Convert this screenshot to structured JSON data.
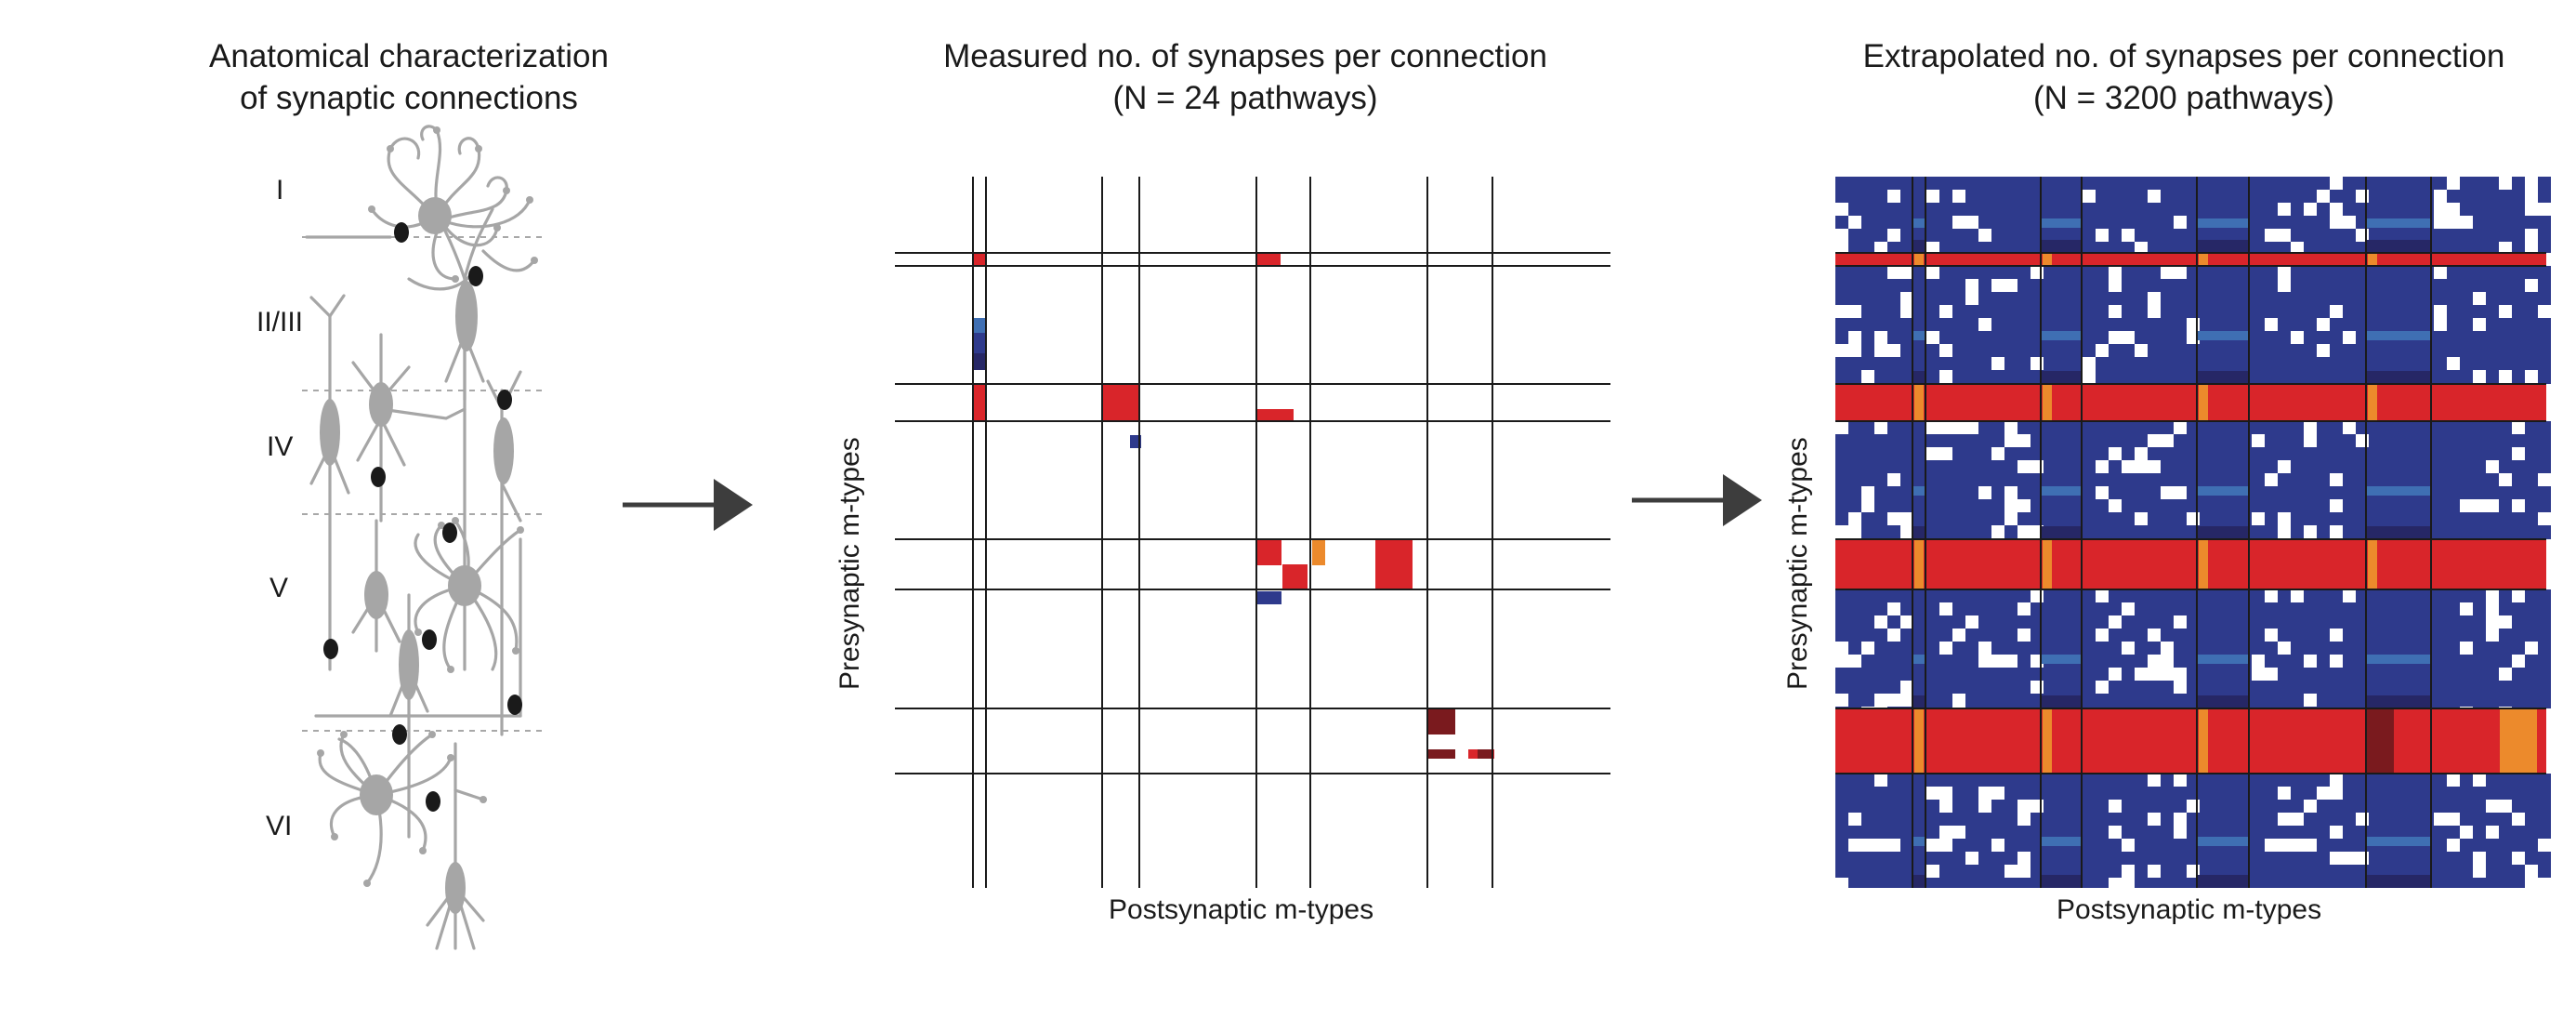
{
  "panels": {
    "left": {
      "title": "Anatomical characterization\nof synaptic connections"
    },
    "middle": {
      "title": "Measured no. of synapses per connection\n(N = 24 pathways)"
    },
    "right": {
      "title": "Extrapolated no. of synapses per connection\n(N = 3200 pathways)"
    }
  },
  "layers": [
    "I",
    "II/III",
    "IV",
    "V",
    "VI"
  ],
  "axes": {
    "x_label": "Postsynaptic m-types",
    "y_label": "Presynaptic m-types"
  },
  "colors": {
    "neuron": "#a6a6a6",
    "synapse": "#1a1a1a",
    "arrow": "#3d3d3d",
    "red": "#d9252a",
    "orange": "#ec8a2c",
    "navy": "#2e3a8c",
    "midblue": "#3f6fb3",
    "darknavy": "#262766",
    "maroon": "#7a1a1e"
  }
}
